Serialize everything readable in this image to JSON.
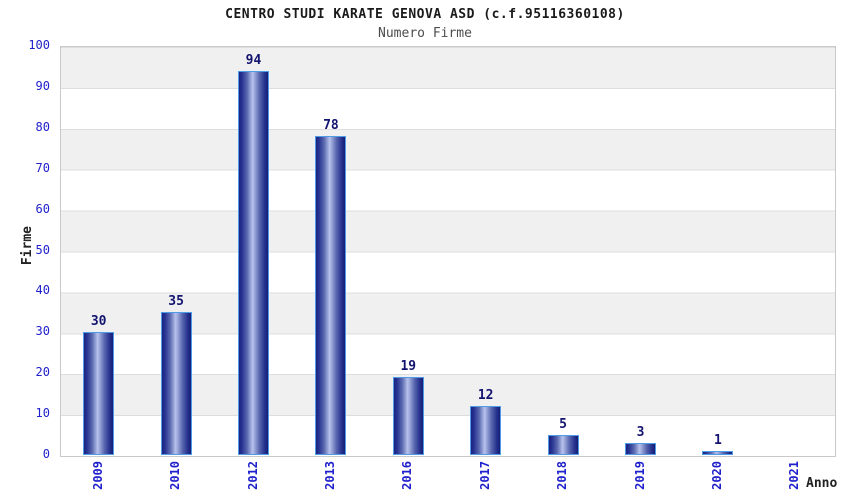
{
  "chart_data": {
    "type": "bar",
    "title": "CENTRO STUDI KARATE GENOVA ASD (c.f.95116360108)",
    "subtitle": "Numero Firme",
    "xlabel": "Anno",
    "ylabel": "Firme",
    "categories": [
      "2009",
      "2010",
      "2012",
      "2013",
      "2016",
      "2017",
      "2018",
      "2019",
      "2020",
      "2021"
    ],
    "values": [
      30,
      35,
      94,
      78,
      19,
      12,
      5,
      3,
      1,
      null
    ],
    "bar_labels": [
      "30",
      "35",
      "94",
      "78",
      "19",
      "12",
      "5",
      "3",
      "1",
      ""
    ],
    "ylim": [
      0,
      100
    ],
    "y_ticks": [
      0,
      10,
      20,
      30,
      40,
      50,
      60,
      70,
      80,
      90,
      100
    ],
    "grid": true,
    "legend": "none",
    "style": {
      "tick_label_color": "#2020cc",
      "value_label_color": "#131370",
      "title_color": "#1a1a1a",
      "subtitle_color": "#4d4d4d",
      "axis_title_color": "#222222",
      "band_colors": [
        "#f0f0f0",
        "#ffffff"
      ],
      "grid_color": "#dedede",
      "plot_border_color": "#c9c9c9",
      "bar_border_color": "#4e9ce8",
      "bar_gradient": [
        "#1b2480",
        "#b8c2ec",
        "#161e74"
      ]
    }
  }
}
